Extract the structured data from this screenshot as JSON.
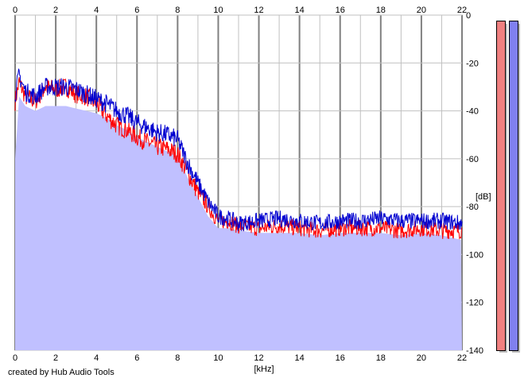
{
  "app": {
    "credit": "created by Hub Audio Tools"
  },
  "colors": {
    "background": "#ffffff",
    "grid_minor": "#c0c0c0",
    "grid_major": "#808080",
    "fill": "#c0c0ff",
    "left_channel": "#ff0000",
    "right_channel": "#0000d0",
    "meter_left": "#f08080",
    "meter_right": "#8080f0"
  },
  "chart_data": {
    "type": "line",
    "x_unit_label": "[kHz]",
    "y_unit_label": "[dB]",
    "xlim": [
      0,
      22
    ],
    "ylim": [
      -140,
      0
    ],
    "x_ticks": [
      "0",
      "2",
      "4",
      "6",
      "8",
      "10",
      "12",
      "14",
      "16",
      "18",
      "20",
      "22"
    ],
    "y_ticks": [
      "0",
      "-20",
      "-40",
      "-60",
      "-80",
      "-100",
      "-120",
      "-140"
    ],
    "grid": true,
    "series": [
      {
        "color": "#ff0000",
        "x": [
          0,
          0.2,
          0.5,
          1,
          1.5,
          2,
          2.5,
          3,
          3.5,
          4,
          4.5,
          5,
          5.5,
          6,
          6.5,
          7,
          7.5,
          8,
          8.5,
          9,
          9.5,
          10,
          10.5,
          11,
          12,
          13,
          14,
          15,
          16,
          17,
          18,
          19,
          20,
          21,
          22
        ],
        "y": [
          -36,
          -28,
          -34,
          -36,
          -30,
          -31,
          -30,
          -33,
          -34,
          -37,
          -42,
          -46,
          -48,
          -51,
          -53,
          -55,
          -56,
          -58,
          -66,
          -74,
          -80,
          -86,
          -86,
          -88,
          -89,
          -88,
          -89,
          -90,
          -89,
          -89,
          -89,
          -90,
          -89,
          -90,
          -90
        ]
      },
      {
        "color": "#0000d0",
        "x": [
          0,
          0.2,
          0.5,
          1,
          1.5,
          2,
          2.5,
          3,
          3.5,
          4,
          4.5,
          5,
          5.5,
          6,
          6.5,
          7,
          7.5,
          8,
          8.5,
          9,
          9.5,
          10,
          10.5,
          11,
          12,
          13,
          14,
          15,
          16,
          17,
          18,
          19,
          20,
          21,
          22
        ],
        "y": [
          -33,
          -25,
          -32,
          -34,
          -30,
          -30,
          -30,
          -31,
          -33,
          -35,
          -37,
          -40,
          -42,
          -45,
          -47,
          -49,
          -50,
          -52,
          -62,
          -70,
          -78,
          -84,
          -85,
          -87,
          -86,
          -85,
          -86,
          -87,
          -86,
          -86,
          -85,
          -86,
          -86,
          -86,
          -87
        ]
      }
    ],
    "fill_envelope": {
      "x": [
        0,
        0.2,
        0.5,
        1,
        1.5,
        2,
        2.5,
        3,
        3.5,
        4,
        4.5,
        5,
        5.5,
        6,
        6.5,
        7,
        7.5,
        8,
        8.5,
        9,
        9.5,
        10,
        10.5,
        11,
        12,
        13,
        14,
        15,
        16,
        17,
        18,
        19,
        20,
        21,
        22
      ],
      "y": [
        -60,
        -34,
        -38,
        -40,
        -38,
        -38,
        -38,
        -39,
        -40,
        -41,
        -43,
        -46,
        -48,
        -51,
        -53,
        -55,
        -57,
        -59,
        -68,
        -76,
        -84,
        -89,
        -89,
        -90,
        -91,
        -91,
        -91,
        -92,
        -91,
        -91,
        -91,
        -92,
        -91,
        -92,
        -94
      ]
    }
  },
  "meters": [
    {
      "name": "left",
      "level": 1.0
    },
    {
      "name": "right",
      "level": 1.0
    }
  ]
}
